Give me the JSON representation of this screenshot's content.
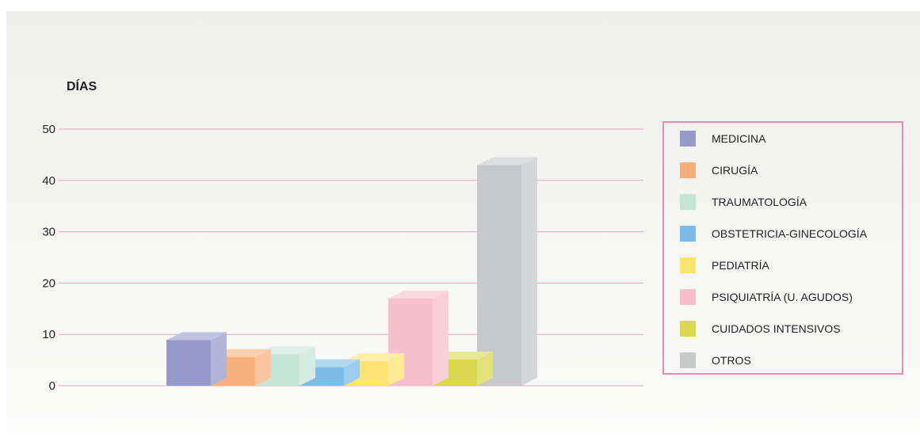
{
  "chart_data": {
    "type": "bar",
    "ylabel": "DÍAS",
    "ylim": [
      0,
      50
    ],
    "yticks": [
      0,
      10,
      20,
      30,
      40,
      50
    ],
    "grid": true,
    "legend_position": "right",
    "categories": [
      "MEDICINA",
      "CIRUGÍA",
      "TRAUMATOLOGÍA",
      "OBSTETRICIA-GINECOLOGÍA",
      "PEDIATRÍA",
      "PSIQUIATRÍA (U. AGUDOS)",
      "CUIDADOS INTENSIVOS",
      "OTROS"
    ],
    "values": [
      8.9,
      5.6,
      6.1,
      3.6,
      4.8,
      17.0,
      5.1,
      43.0
    ],
    "colors": [
      "#9899cb",
      "#f9b07d",
      "#c5e5d8",
      "#7cbce6",
      "#fde36f",
      "#f7bfcf",
      "#d9d84f",
      "#c7c8ca"
    ]
  }
}
